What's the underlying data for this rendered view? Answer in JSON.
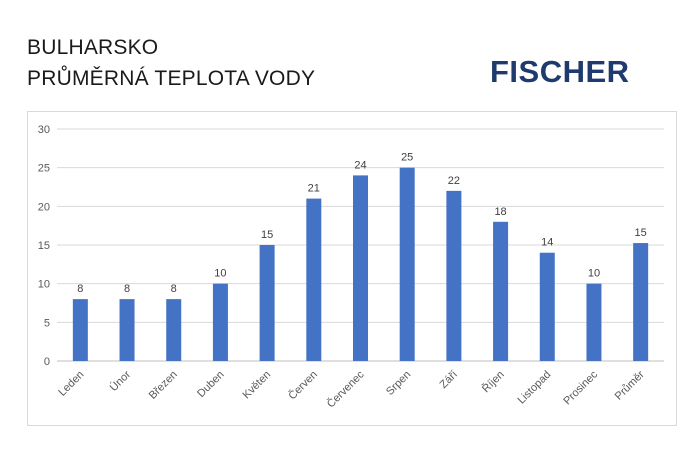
{
  "header": {
    "title_line1": "BULHARSKO",
    "title_line2": "PRŮMĚRNÁ TEPLOTA VODY",
    "logo_text": "FISCHER",
    "logo_color": "#1f3a6e"
  },
  "chart_data": {
    "type": "bar",
    "categories": [
      "Leden",
      "Únor",
      "Březen",
      "Duben",
      "Květen",
      "Červen",
      "Červenec",
      "Srpen",
      "Září",
      "Říjen",
      "Listopad",
      "Prosinec",
      "Průměr"
    ],
    "values": [
      8,
      8,
      8,
      10,
      15,
      21,
      24,
      25,
      22,
      18,
      14,
      10,
      15.25
    ],
    "data_labels": [
      "8",
      "8",
      "8",
      "10",
      "15",
      "21",
      "24",
      "25",
      "22",
      "18",
      "14",
      "10",
      "15"
    ],
    "yticks": [
      "0",
      "5",
      "10",
      "15",
      "20",
      "25",
      "30"
    ],
    "ylim": [
      0,
      30
    ],
    "grid": true,
    "bar_color": "#4472c4"
  }
}
